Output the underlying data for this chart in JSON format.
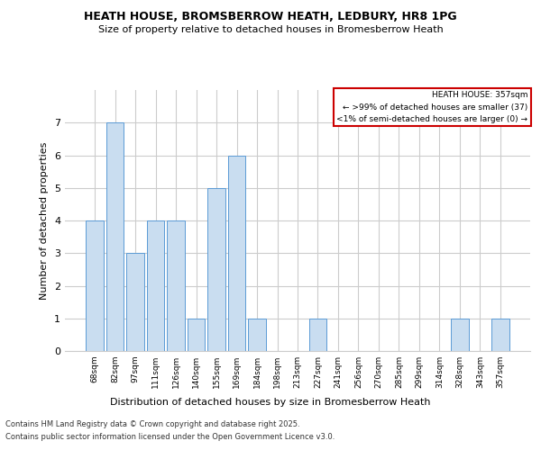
{
  "title": "HEATH HOUSE, BROMSBERROW HEATH, LEDBURY, HR8 1PG",
  "subtitle": "Size of property relative to detached houses in Bromesberrow Heath",
  "xlabel": "Distribution of detached houses by size in Bromesberrow Heath",
  "ylabel": "Number of detached properties",
  "categories": [
    "68sqm",
    "82sqm",
    "97sqm",
    "111sqm",
    "126sqm",
    "140sqm",
    "155sqm",
    "169sqm",
    "184sqm",
    "198sqm",
    "213sqm",
    "227sqm",
    "241sqm",
    "256sqm",
    "270sqm",
    "285sqm",
    "299sqm",
    "314sqm",
    "328sqm",
    "343sqm",
    "357sqm"
  ],
  "values": [
    4,
    7,
    3,
    4,
    4,
    1,
    5,
    6,
    1,
    0,
    0,
    1,
    0,
    0,
    0,
    0,
    0,
    0,
    1,
    0,
    1
  ],
  "bar_color": "#c9ddf0",
  "bar_edge_color": "#5b9bd5",
  "ylim": [
    0,
    8
  ],
  "yticks": [
    0,
    1,
    2,
    3,
    4,
    5,
    6,
    7
  ],
  "annotation_title": "HEATH HOUSE: 357sqm",
  "annotation_line1": "← >99% of detached houses are smaller (37)",
  "annotation_line2": "<1% of semi-detached houses are larger (0) →",
  "footer_line1": "Contains HM Land Registry data © Crown copyright and database right 2025.",
  "footer_line2": "Contains public sector information licensed under the Open Government Licence v3.0.",
  "background_color": "#ffffff",
  "grid_color": "#cccccc",
  "annotation_box_color": "#cc0000"
}
